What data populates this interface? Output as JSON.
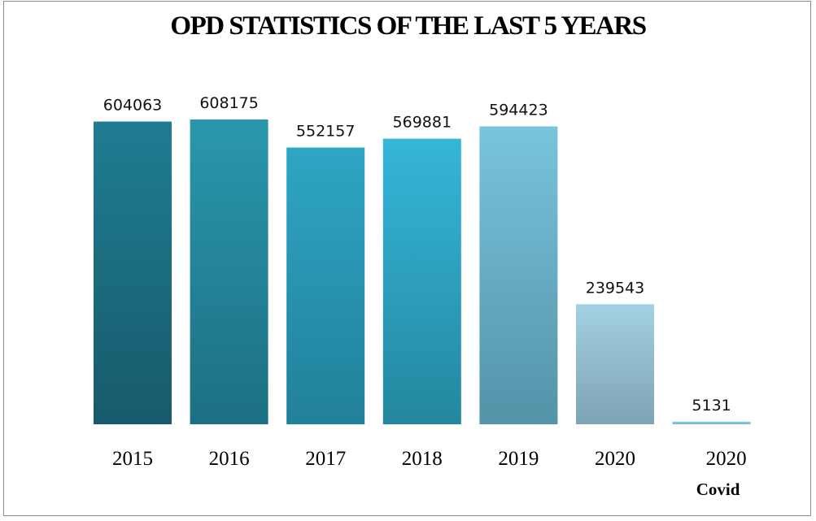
{
  "chart_data": {
    "type": "bar",
    "title": "OPD STATISTICS OF THE LAST 5 YEARS",
    "categories": [
      "2015",
      "2016",
      "2017",
      "2018",
      "2019",
      "2020",
      "2020"
    ],
    "category_sublabels": [
      "",
      "",
      "",
      "",
      "",
      "",
      "Covid"
    ],
    "values": [
      604063,
      608175,
      552157,
      569881,
      594423,
      239543,
      5131
    ],
    "data_labels": [
      "604063",
      "608175",
      "552157",
      "569881",
      "594423",
      "239543",
      "5131"
    ],
    "ylim": [
      0,
      608175
    ],
    "grid": false,
    "legend": "none",
    "bar_colors": [
      [
        "#1f7d92",
        "#175a6b"
      ],
      [
        "#2a97ae",
        "#1d6f82"
      ],
      [
        "#2ea6c4",
        "#21809a"
      ],
      [
        "#35b6d9",
        "#24879f"
      ],
      [
        "#78c4dd",
        "#5493a8"
      ],
      [
        "#a3d1e3",
        "#7ea3b4"
      ],
      [
        "#8ecde6",
        "#6fb2cf"
      ]
    ]
  }
}
